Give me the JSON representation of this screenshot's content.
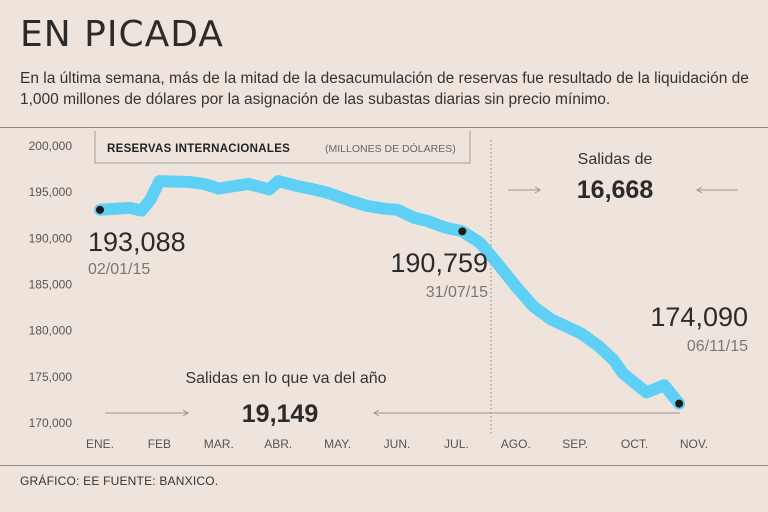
{
  "header": {
    "title": "EN PICADA",
    "subtitle": "En la última semana, más de la mitad de la desacumulación de reservas fue resultado de la liquidación de 1,000 millones de dólares por la asignación de las subastas diarias sin precio mínimo."
  },
  "footer": {
    "source": "GRÁFICO: EE  FUENTE: BANXICO."
  },
  "colors": {
    "line": "#5ecff5",
    "background": "#efe4dc",
    "marker": "#1a1a1a"
  },
  "chart_data": {
    "type": "line",
    "title": "RESERVAS INTERNACIONALES",
    "unit_label": "(MILLONES DE DÓLARES)",
    "x_label": "",
    "y_label": "",
    "ylim": [
      170000,
      200000
    ],
    "yticks": [
      200000,
      195000,
      190000,
      185000,
      180000,
      175000,
      170000
    ],
    "ytick_labels": [
      "200,000",
      "195,000",
      "190,000",
      "185,000",
      "180,000",
      "175,000",
      "170,000"
    ],
    "months": [
      "ENE.",
      "FEB",
      "MAR.",
      "ABR.",
      "MAY.",
      "JUN.",
      "JUL.",
      "AGO.",
      "SEP.",
      "OCT.",
      "NOV."
    ],
    "series": [
      {
        "name": "Reservas internacionales",
        "x": [
          0,
          0.5,
          0.7,
          0.85,
          1.0,
          1.5,
          1.75,
          2.0,
          2.5,
          2.85,
          3.0,
          3.3,
          3.6,
          3.85,
          4.2,
          4.5,
          4.8,
          5.0,
          5.3,
          5.5,
          5.8,
          6.1,
          6.4,
          6.7,
          7.0,
          7.3,
          7.6,
          7.9,
          8.1,
          8.4,
          8.65,
          8.8,
          9.2,
          9.5,
          9.75
        ],
        "values": [
          193088,
          193300,
          193000,
          194200,
          196200,
          196100,
          195900,
          195400,
          195900,
          195300,
          196200,
          195700,
          195300,
          194900,
          194100,
          193500,
          193200,
          193100,
          192200,
          191900,
          191200,
          190759,
          189500,
          187200,
          184800,
          182600,
          181200,
          180300,
          179700,
          178300,
          176800,
          175400,
          173300,
          174090,
          172100
        ]
      }
    ],
    "annotations": [
      {
        "value": "193,088",
        "date": "02/01/15"
      },
      {
        "value": "190,759",
        "date": "31/07/15"
      },
      {
        "value": "174,090",
        "date": "06/11/15"
      }
    ],
    "callouts": [
      {
        "label": "Salidas de",
        "value": "16,668"
      },
      {
        "label": "Salidas en lo que va del año",
        "value": "19,149"
      }
    ]
  }
}
